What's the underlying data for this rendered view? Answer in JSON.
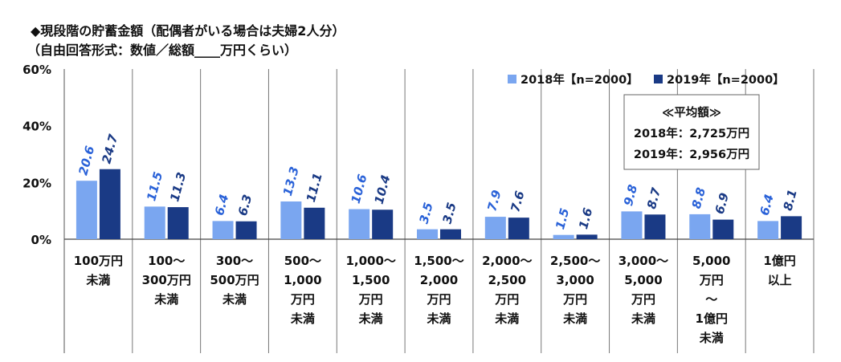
{
  "chart_data": {
    "type": "bar",
    "title": "◆現段階の貯蓄金額（配偶者がいる場合は夫婦2人分）",
    "subtitle": "（自由回答形式：数値／総額____万円くらい）",
    "yticks": [
      "0%",
      "20%",
      "40%",
      "60%"
    ],
    "ylim": [
      0,
      60
    ],
    "categories": [
      [
        "100万円",
        "未満"
      ],
      [
        "100～",
        "300万円",
        "未満"
      ],
      [
        "300～",
        "500万円",
        "未満"
      ],
      [
        "500～",
        "1,000",
        "万円",
        "未満"
      ],
      [
        "1,000～",
        "1,500",
        "万円",
        "未満"
      ],
      [
        "1,500～",
        "2,000",
        "万円",
        "未満"
      ],
      [
        "2,000～",
        "2,500",
        "万円",
        "未満"
      ],
      [
        "2,500～",
        "3,000",
        "万円",
        "未満"
      ],
      [
        "3,000～",
        "5,000",
        "万円",
        "未満"
      ],
      [
        "5,000",
        "万円",
        "～",
        "1億円",
        "未満"
      ],
      [
        "1億円",
        "以上"
      ]
    ],
    "series": [
      {
        "name": "2018年【n=2000】",
        "color": "#7aa6f0",
        "label_color": "#2a62d8",
        "values": [
          20.6,
          11.5,
          6.4,
          13.3,
          10.6,
          3.5,
          7.9,
          1.5,
          9.8,
          8.8,
          6.4
        ]
      },
      {
        "name": "2019年【n=2000】",
        "color": "#1a3a85",
        "label_color": "#1a3a85",
        "values": [
          24.7,
          11.3,
          6.3,
          11.1,
          10.4,
          3.5,
          7.6,
          1.6,
          8.7,
          6.9,
          8.1
        ]
      }
    ],
    "legend_position": "top-right",
    "average_box": {
      "heading": "≪平均額≫",
      "lines": [
        "2018年：2,725万円",
        "2019年：2,956万円"
      ]
    },
    "grid": false
  }
}
